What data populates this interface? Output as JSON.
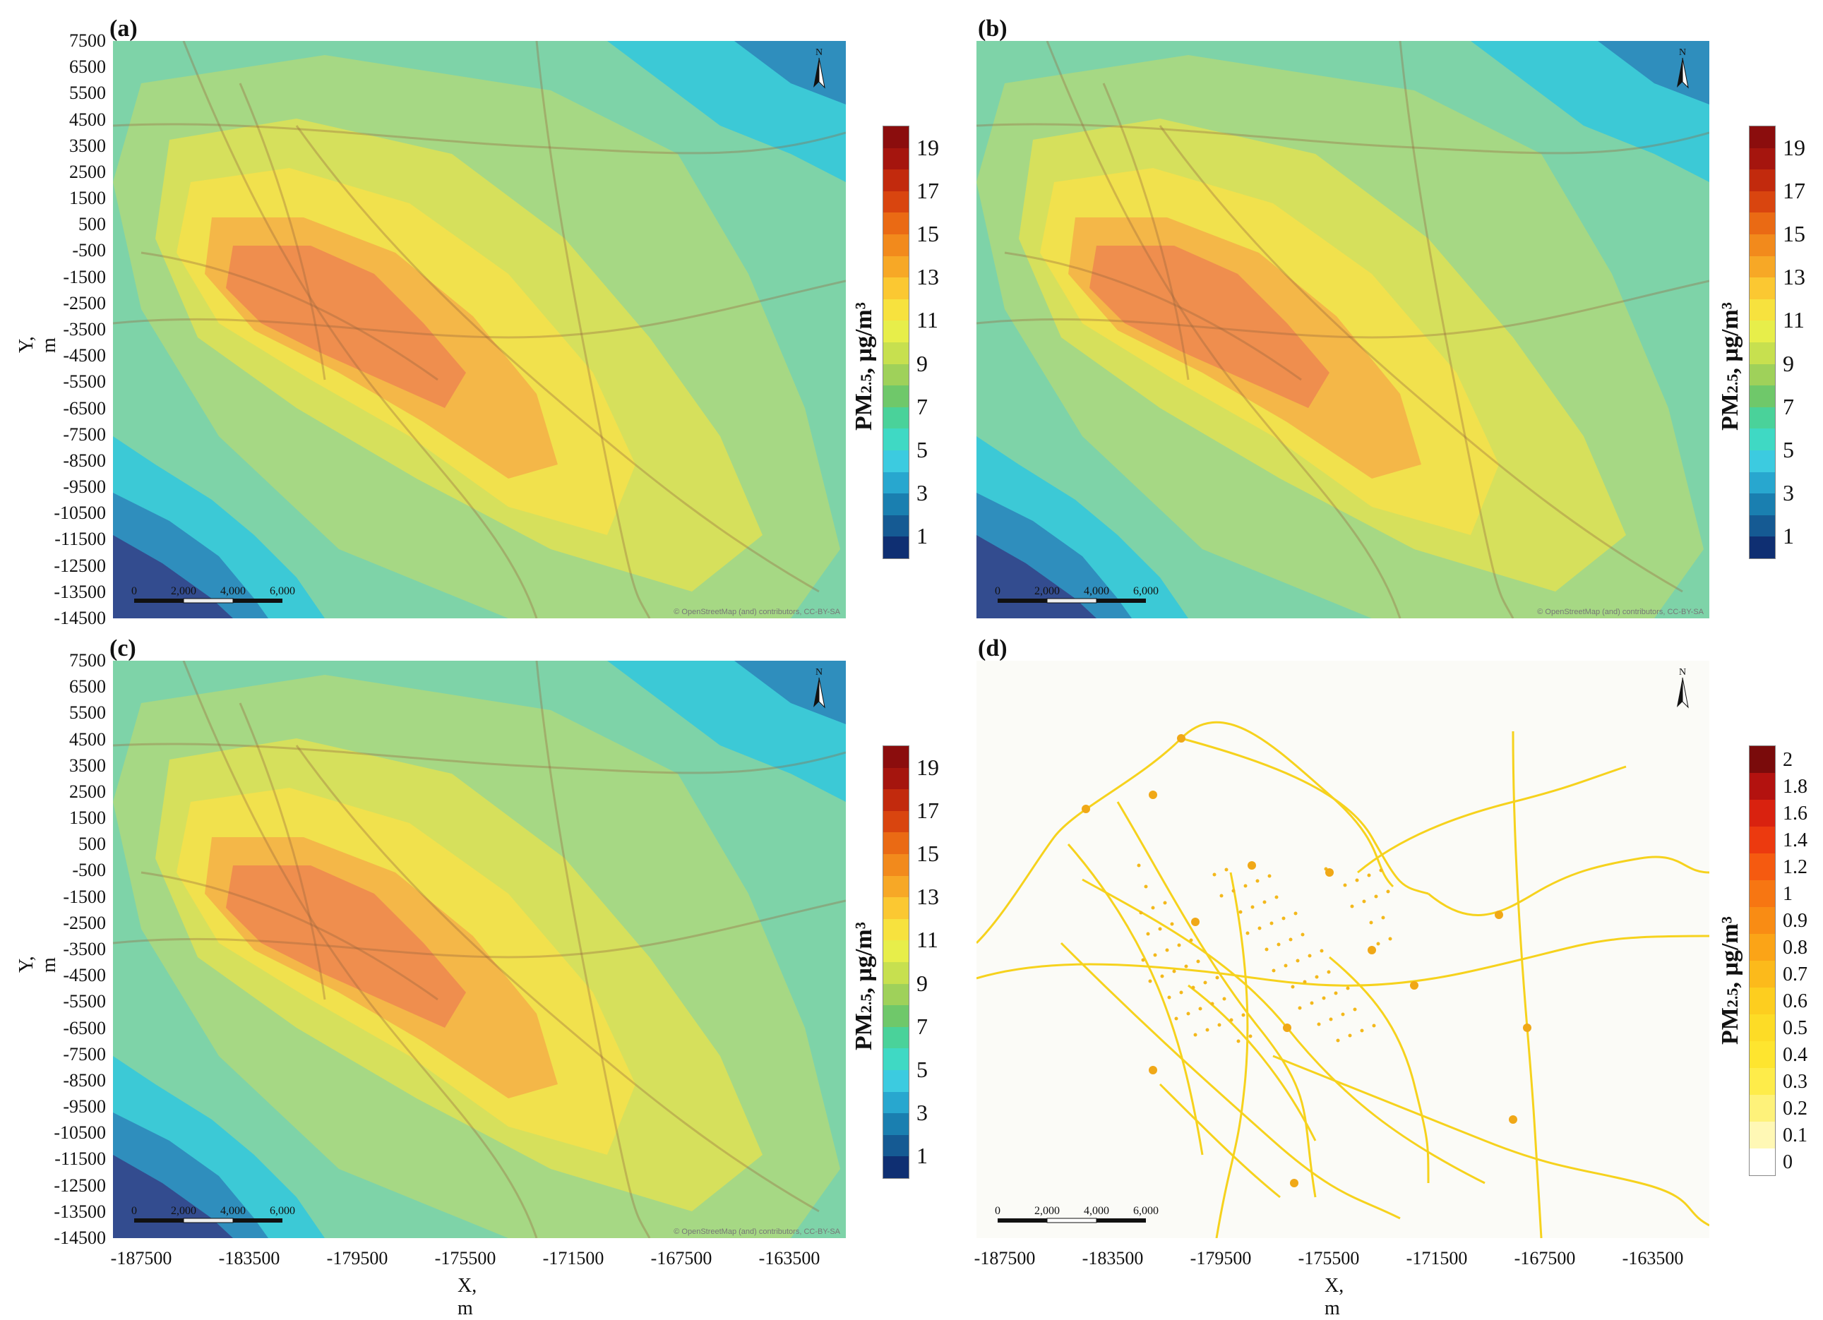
{
  "panels": [
    {
      "id": "a",
      "label": "(a)",
      "kind": "concentration"
    },
    {
      "id": "b",
      "label": "(b)",
      "kind": "concentration"
    },
    {
      "id": "c",
      "label": "(c)",
      "kind": "concentration"
    },
    {
      "id": "d",
      "label": "(d)",
      "kind": "difference"
    }
  ],
  "axes": {
    "y_title": "Y, m",
    "x_title": "X, m",
    "y_ticks": [
      "7500",
      "6500",
      "5500",
      "4500",
      "3500",
      "2500",
      "1500",
      "500",
      "-500",
      "-1500",
      "-2500",
      "-3500",
      "-4500",
      "-5500",
      "-6500",
      "-7500",
      "-8500",
      "-9500",
      "-10500",
      "-11500",
      "-12500",
      "-13500",
      "-14500"
    ],
    "x_ticks": [
      "-187500",
      "-183500",
      "-179500",
      "-175500",
      "-171500",
      "-167500",
      "-163500"
    ]
  },
  "colorbar_main": {
    "title_prefix": "PM",
    "title_sub": "2.5",
    "title_suffix": ", µg/m³",
    "tick_labels": [
      "19",
      "17",
      "15",
      "13",
      "11",
      "9",
      "7",
      "5",
      "3",
      "1"
    ],
    "colors": [
      "#8b0d0d",
      "#a5150e",
      "#c22a0d",
      "#d9450f",
      "#ea6a14",
      "#f28a1c",
      "#f7a826",
      "#fbc832",
      "#f7e23e",
      "#e7ee4a",
      "#c7e04f",
      "#9fd15a",
      "#6fc86a",
      "#4ad29a",
      "#3fd9c4",
      "#3ccbe0",
      "#28a7cf",
      "#1a7fb0",
      "#155a93",
      "#0f2f72"
    ]
  },
  "colorbar_diff": {
    "title_prefix": "PM",
    "title_sub": "2.5",
    "title_suffix": ", µg/m³",
    "tick_labels": [
      "2",
      "1.8",
      "1.6",
      "1.4",
      "1.2",
      "1",
      "0.9",
      "0.8",
      "0.7",
      "0.6",
      "0.5",
      "0.4",
      "0.3",
      "0.2",
      "0.1",
      "0"
    ],
    "colors": [
      "#7a0b0b",
      "#b3120f",
      "#d9220f",
      "#ec3a0f",
      "#f55a10",
      "#f77612",
      "#f98c14",
      "#fba417",
      "#fcba1b",
      "#fdce1f",
      "#fddc26",
      "#fee52f",
      "#feec4a",
      "#fef27a",
      "#fff8b5",
      "#ffffff"
    ]
  },
  "scalebar": {
    "labels": [
      "0",
      "2,000",
      "4,000",
      "6,000"
    ]
  },
  "north_label": "N",
  "attribution": "© OpenStreetMap (and) contributors, CC-BY-SA"
}
